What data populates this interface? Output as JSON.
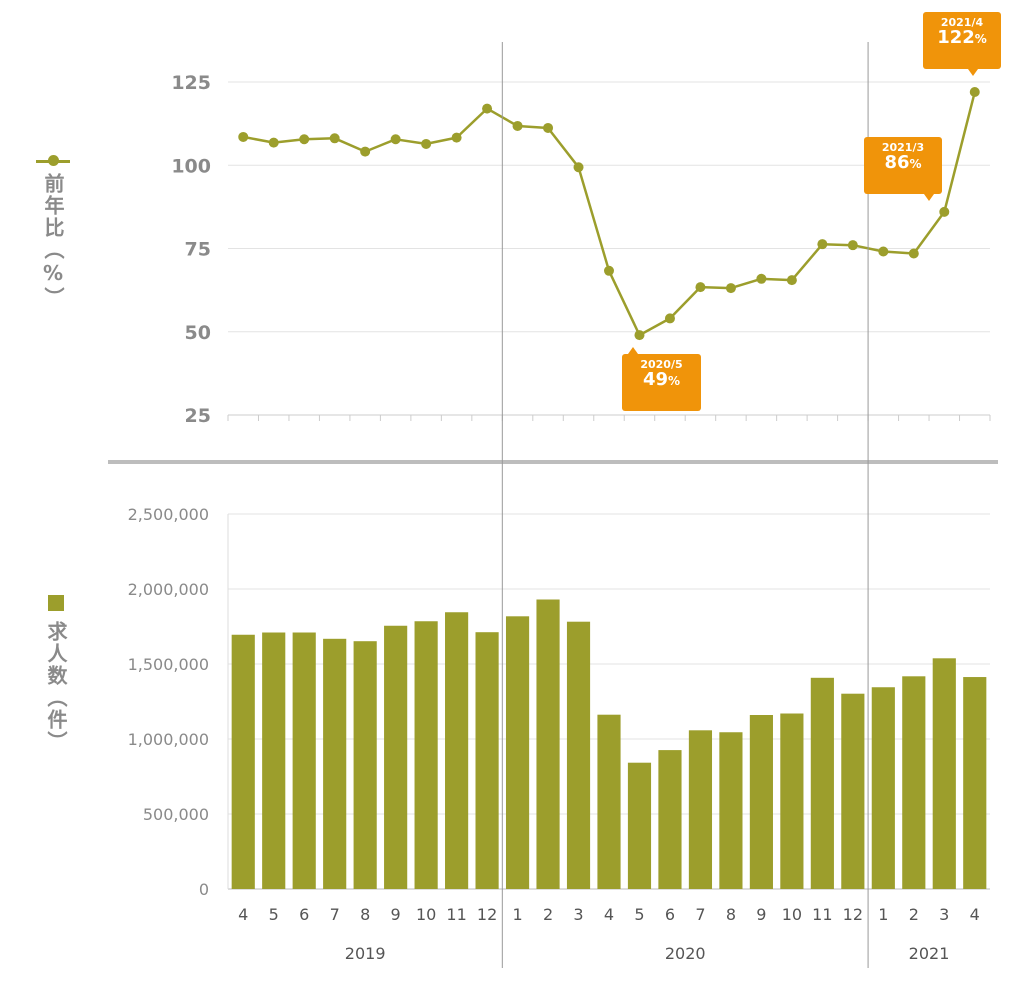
{
  "legend": {
    "ratio_label": "前年比（%）",
    "count_label": "求人数（件）"
  },
  "callouts": [
    {
      "date": "2020/5",
      "value": "49",
      "unit": "%"
    },
    {
      "date": "2021/3",
      "value": "86",
      "unit": "%"
    },
    {
      "date": "2021/4",
      "value": "122",
      "unit": "%"
    }
  ],
  "colors": {
    "series": "#9c9e2c",
    "callout": "#f0940a",
    "grid": "#e3e3e3",
    "divider": "#999999"
  },
  "chart_data": [
    {
      "type": "line",
      "ylabel": "前年比（%）",
      "ylim": [
        25,
        125
      ],
      "yticks": [
        125,
        100,
        75,
        50,
        25
      ],
      "grid": true,
      "x": [
        "2019/4",
        "2019/5",
        "2019/6",
        "2019/7",
        "2019/8",
        "2019/9",
        "2019/10",
        "2019/11",
        "2019/12",
        "2020/1",
        "2020/2",
        "2020/3",
        "2020/4",
        "2020/5",
        "2020/6",
        "2020/7",
        "2020/8",
        "2020/9",
        "2020/10",
        "2020/11",
        "2020/12",
        "2021/1",
        "2021/2",
        "2021/3",
        "2021/4"
      ],
      "series": [
        {
          "values": [
            108.5,
            106.8,
            107.8,
            108.1,
            104.1,
            107.8,
            106.4,
            108.3,
            117,
            111.8,
            111.2,
            99.4,
            68.3,
            49,
            54,
            63.4,
            63.1,
            65.9,
            65.5,
            76.3,
            76,
            74.1,
            73.5,
            86,
            122
          ]
        }
      ]
    },
    {
      "type": "bar",
      "ylabel": "求人数（件）",
      "ylim": [
        0,
        2500000
      ],
      "yticks": [
        "2,500,000",
        "2,000,000",
        "1,500,000",
        "1,000,000",
        "500,000",
        "0"
      ],
      "grid": true,
      "categories": [
        "4",
        "5",
        "6",
        "7",
        "8",
        "9",
        "10",
        "11",
        "12",
        "1",
        "2",
        "3",
        "4",
        "5",
        "6",
        "7",
        "8",
        "9",
        "10",
        "11",
        "12",
        "1",
        "2",
        "3",
        "4"
      ],
      "years": [
        {
          "label": "2019",
          "span": 9
        },
        {
          "label": "2020",
          "span": 12
        },
        {
          "label": "2021",
          "span": 4
        }
      ],
      "series": [
        {
          "values": [
            1695000,
            1710000,
            1710000,
            1668000,
            1652000,
            1755000,
            1785000,
            1845000,
            1712000,
            1818000,
            1930000,
            1782000,
            1162000,
            842000,
            926000,
            1058000,
            1045000,
            1160000,
            1170000,
            1408000,
            1302000,
            1345000,
            1418000,
            1538000,
            1413000
          ]
        }
      ]
    }
  ]
}
